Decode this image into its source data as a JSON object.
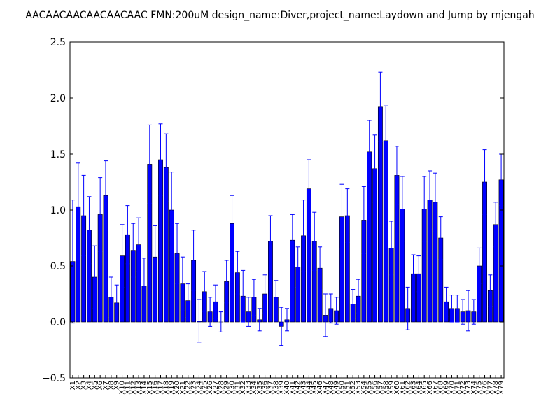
{
  "chart_data": {
    "type": "bar",
    "title": "AACAACAACAACAACAAC  FMN:200uM  design_name:Diver,project_name:Laydown and Jump by rnjengah",
    "xlabel": "",
    "ylabel": "",
    "ylim": [
      -0.5,
      2.5
    ],
    "yticks": [
      "−0.5",
      "0.0",
      "0.5",
      "1.0",
      "1.5",
      "2.0",
      "2.5"
    ],
    "grid": false,
    "legend": "none",
    "bar_color": "#0000ff",
    "error_color": "#0000ff",
    "categories": [
      "X1",
      "X2",
      "X3",
      "X4",
      "X5",
      "X6",
      "X7",
      "X8",
      "X9",
      "X10",
      "X11",
      "X12",
      "X13",
      "X14",
      "X15",
      "X16",
      "X17",
      "X18",
      "X19",
      "X20",
      "X21",
      "X22",
      "X23",
      "X24",
      "X25",
      "X26",
      "X27",
      "X28",
      "X29",
      "X30",
      "X31",
      "X32",
      "X33",
      "X34",
      "X35",
      "X36",
      "X37",
      "X38",
      "X39",
      "X40",
      "X41",
      "X42",
      "X43",
      "X44",
      "X45",
      "X46",
      "X47",
      "X48",
      "X49",
      "X50",
      "X51",
      "X52",
      "X53",
      "X54",
      "X55",
      "X56",
      "X57",
      "X58",
      "X59",
      "X60",
      "X61",
      "X62",
      "X63",
      "X64",
      "X65",
      "X66",
      "X67",
      "X68",
      "X69",
      "X70",
      "X71",
      "X72",
      "X73",
      "X74",
      "X75",
      "X76",
      "X77",
      "X78",
      "X79"
    ],
    "values": [
      0.54,
      1.03,
      0.95,
      0.82,
      0.4,
      0.96,
      1.13,
      0.22,
      0.17,
      0.59,
      0.78,
      0.64,
      0.69,
      0.32,
      1.41,
      0.58,
      1.45,
      1.38,
      1.0,
      0.61,
      0.34,
      0.19,
      0.55,
      0.01,
      0.27,
      0.09,
      0.18,
      0.0,
      0.36,
      0.88,
      0.44,
      0.23,
      0.09,
      0.22,
      0.02,
      0.25,
      0.72,
      0.22,
      -0.04,
      0.02,
      0.73,
      0.49,
      0.77,
      1.19,
      0.72,
      0.48,
      0.06,
      0.12,
      0.1,
      0.94,
      0.95,
      0.16,
      0.23,
      0.91,
      1.52,
      1.37,
      1.92,
      1.62,
      0.66,
      1.31,
      1.01,
      0.12,
      0.43,
      0.43,
      1.01,
      1.09,
      1.07,
      0.75,
      0.18,
      0.12,
      0.12,
      0.09,
      0.1,
      0.09,
      0.5,
      1.25,
      0.28,
      0.87,
      1.27
    ],
    "errors": [
      0.55,
      0.39,
      0.36,
      0.3,
      0.28,
      0.33,
      0.31,
      0.18,
      0.16,
      0.28,
      0.26,
      0.24,
      0.24,
      0.25,
      0.35,
      0.28,
      0.32,
      0.3,
      0.34,
      0.27,
      0.24,
      0.15,
      0.27,
      0.19,
      0.18,
      0.13,
      0.15,
      0.09,
      0.19,
      0.25,
      0.19,
      0.23,
      0.13,
      0.16,
      0.1,
      0.17,
      0.23,
      0.15,
      0.17,
      0.1,
      0.23,
      0.18,
      0.32,
      0.26,
      0.26,
      0.19,
      0.19,
      0.13,
      0.12,
      0.29,
      0.24,
      0.13,
      0.15,
      0.3,
      0.28,
      0.3,
      0.31,
      0.31,
      0.24,
      0.26,
      0.29,
      0.19,
      0.17,
      0.16,
      0.29,
      0.26,
      0.26,
      0.19,
      0.13,
      0.12,
      0.12,
      0.11,
      0.18,
      0.11,
      0.16,
      0.29,
      0.14,
      0.2,
      0.23
    ]
  }
}
